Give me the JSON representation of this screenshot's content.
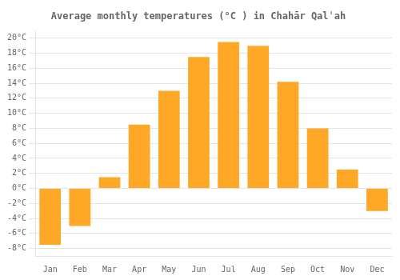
{
  "chart_data": {
    "type": "bar",
    "title": "Average monthly temperatures (°C ) in Chahār Qalʿah",
    "categories": [
      "Jan",
      "Feb",
      "Mar",
      "Apr",
      "May",
      "Jun",
      "Jul",
      "Aug",
      "Sep",
      "Oct",
      "Nov",
      "Dec"
    ],
    "values": [
      -7.5,
      -5.0,
      1.5,
      8.5,
      13.0,
      17.5,
      19.5,
      19.0,
      14.2,
      8.0,
      2.5,
      -3.0
    ],
    "color": "#FFA726",
    "ylim": [
      -9,
      21
    ],
    "yticks": [
      {
        "value": -8,
        "label": "-8°C"
      },
      {
        "value": -6,
        "label": "-6°C"
      },
      {
        "value": -4,
        "label": "-4°C"
      },
      {
        "value": -2,
        "label": "-2°C"
      },
      {
        "value": 0,
        "label": "0°C"
      },
      {
        "value": 2,
        "label": "2°C"
      },
      {
        "value": 4,
        "label": "4°C"
      },
      {
        "value": 6,
        "label": "6°C"
      },
      {
        "value": 8,
        "label": "8°C"
      },
      {
        "value": 10,
        "label": "10°C"
      },
      {
        "value": 12,
        "label": "12°C"
      },
      {
        "value": 14,
        "label": "14°C"
      },
      {
        "value": 16,
        "label": "16°C"
      },
      {
        "value": 18,
        "label": "18°C"
      },
      {
        "value": 20,
        "label": "20°C"
      }
    ],
    "grid": true
  }
}
